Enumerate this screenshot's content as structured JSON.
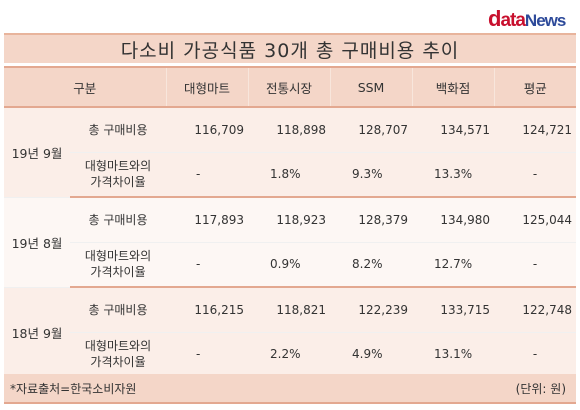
{
  "logo": {
    "d": "d",
    "ata": "ata",
    "news": "News"
  },
  "title": "다소비 가공식품 30개 총 구매비용 추이",
  "headers": [
    "구분",
    "대형마트",
    "전통시장",
    "SSM",
    "백화점",
    "평균"
  ],
  "groups": [
    {
      "period": "19년 9월",
      "rows": [
        {
          "metric": "총 구매비용",
          "values": [
            "116,709",
            "118,898",
            "128,707",
            "134,571",
            "124,721"
          ]
        },
        {
          "metric_line1": "대형마트와의",
          "metric_line2": "가격차이율",
          "values": [
            "-",
            "1.8%",
            "9.3%",
            "13.3%",
            "-"
          ]
        }
      ]
    },
    {
      "period": "19년 8월",
      "rows": [
        {
          "metric": "총 구매비용",
          "values": [
            "117,893",
            "118,923",
            "128,379",
            "134,980",
            "125,044"
          ]
        },
        {
          "metric_line1": "대형마트와의",
          "metric_line2": "가격차이율",
          "values": [
            "-",
            "0.9%",
            "8.2%",
            "12.7%",
            "-"
          ]
        }
      ]
    },
    {
      "period": "18년 9월",
      "rows": [
        {
          "metric": "총 구매비용",
          "values": [
            "116,215",
            "118,821",
            "122,239",
            "133,715",
            "122,748"
          ]
        },
        {
          "metric_line1": "대형마트와의",
          "metric_line2": "가격차이율",
          "values": [
            "-",
            "2.2%",
            "4.9%",
            "13.1%",
            "-"
          ]
        }
      ]
    }
  ],
  "footer": {
    "source": "*자료출처=한국소비자원",
    "unit": "(단위: 원)"
  },
  "colors": {
    "header_bg": "#f4d6c8",
    "border_accent": "#e3a890",
    "logo_red": "#c8102e",
    "logo_blue": "#2d4a9a"
  }
}
